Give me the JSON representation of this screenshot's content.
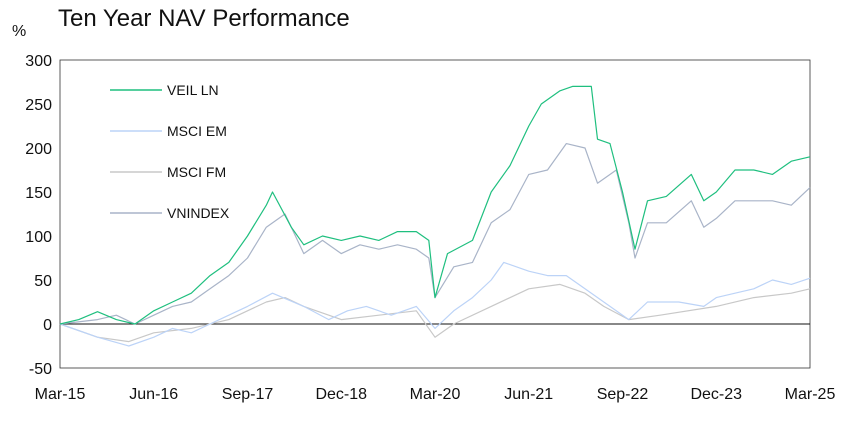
{
  "chart_data": {
    "type": "line",
    "title": "Ten Year NAV Performance",
    "ylabel": "%",
    "xlabel": "",
    "ylim": [
      -50,
      300
    ],
    "yticks": [
      -50,
      0,
      50,
      100,
      150,
      200,
      250,
      300
    ],
    "xlim": [
      "2015-03",
      "2025-03"
    ],
    "xticks": [
      {
        "date": "2015-03",
        "label": "Mar-15"
      },
      {
        "date": "2016-06",
        "label": "Jun-16"
      },
      {
        "date": "2017-09",
        "label": "Sep-17"
      },
      {
        "date": "2018-12",
        "label": "Dec-18"
      },
      {
        "date": "2020-03",
        "label": "Mar-20"
      },
      {
        "date": "2021-06",
        "label": "Jun-21"
      },
      {
        "date": "2022-09",
        "label": "Sep-22"
      },
      {
        "date": "2023-12",
        "label": "Dec-23"
      },
      {
        "date": "2025-03",
        "label": "Mar-25"
      }
    ],
    "grid": false,
    "zero_line": true,
    "legend_position": "top-left",
    "series": [
      {
        "name": "VEIL LN",
        "color": "#1fbf7f",
        "points": [
          [
            "2015-03",
            0
          ],
          [
            "2015-06",
            5
          ],
          [
            "2015-09",
            14
          ],
          [
            "2015-12",
            5
          ],
          [
            "2016-03",
            0
          ],
          [
            "2016-06",
            15
          ],
          [
            "2016-09",
            25
          ],
          [
            "2016-12",
            35
          ],
          [
            "2017-03",
            55
          ],
          [
            "2017-06",
            70
          ],
          [
            "2017-09",
            100
          ],
          [
            "2017-12",
            135
          ],
          [
            "2018-01",
            150
          ],
          [
            "2018-04",
            110
          ],
          [
            "2018-06",
            90
          ],
          [
            "2018-09",
            100
          ],
          [
            "2018-12",
            95
          ],
          [
            "2019-03",
            100
          ],
          [
            "2019-06",
            95
          ],
          [
            "2019-09",
            105
          ],
          [
            "2019-12",
            105
          ],
          [
            "2020-02",
            95
          ],
          [
            "2020-03",
            30
          ],
          [
            "2020-05",
            80
          ],
          [
            "2020-09",
            95
          ],
          [
            "2020-12",
            150
          ],
          [
            "2021-03",
            180
          ],
          [
            "2021-06",
            225
          ],
          [
            "2021-08",
            250
          ],
          [
            "2021-11",
            265
          ],
          [
            "2022-01",
            270
          ],
          [
            "2022-04",
            270
          ],
          [
            "2022-05",
            210
          ],
          [
            "2022-07",
            205
          ],
          [
            "2022-09",
            150
          ],
          [
            "2022-11",
            85
          ],
          [
            "2023-01",
            140
          ],
          [
            "2023-04",
            145
          ],
          [
            "2023-08",
            170
          ],
          [
            "2023-10",
            140
          ],
          [
            "2023-12",
            150
          ],
          [
            "2024-03",
            175
          ],
          [
            "2024-06",
            175
          ],
          [
            "2024-09",
            170
          ],
          [
            "2024-12",
            185
          ],
          [
            "2025-03",
            190
          ]
        ]
      },
      {
        "name": "MSCI EM",
        "color": "#bcd3f7",
        "points": [
          [
            "2015-03",
            0
          ],
          [
            "2015-09",
            -15
          ],
          [
            "2016-02",
            -25
          ],
          [
            "2016-06",
            -15
          ],
          [
            "2016-09",
            -5
          ],
          [
            "2016-12",
            -10
          ],
          [
            "2017-03",
            0
          ],
          [
            "2017-06",
            10
          ],
          [
            "2017-09",
            20
          ],
          [
            "2018-01",
            35
          ],
          [
            "2018-06",
            20
          ],
          [
            "2018-10",
            5
          ],
          [
            "2019-01",
            15
          ],
          [
            "2019-04",
            20
          ],
          [
            "2019-08",
            10
          ],
          [
            "2019-12",
            20
          ],
          [
            "2020-03",
            -5
          ],
          [
            "2020-06",
            15
          ],
          [
            "2020-09",
            30
          ],
          [
            "2020-12",
            50
          ],
          [
            "2021-02",
            70
          ],
          [
            "2021-06",
            60
          ],
          [
            "2021-09",
            55
          ],
          [
            "2021-12",
            55
          ],
          [
            "2022-03",
            40
          ],
          [
            "2022-06",
            25
          ],
          [
            "2022-10",
            5
          ],
          [
            "2023-01",
            25
          ],
          [
            "2023-06",
            25
          ],
          [
            "2023-10",
            20
          ],
          [
            "2023-12",
            30
          ],
          [
            "2024-03",
            35
          ],
          [
            "2024-06",
            40
          ],
          [
            "2024-09",
            50
          ],
          [
            "2024-12",
            45
          ],
          [
            "2025-03",
            52
          ]
        ]
      },
      {
        "name": "MSCI FM",
        "color": "#c8c8c8",
        "points": [
          [
            "2015-03",
            0
          ],
          [
            "2015-09",
            -15
          ],
          [
            "2016-02",
            -20
          ],
          [
            "2016-06",
            -10
          ],
          [
            "2016-12",
            -5
          ],
          [
            "2017-06",
            5
          ],
          [
            "2017-12",
            25
          ],
          [
            "2018-03",
            30
          ],
          [
            "2018-06",
            20
          ],
          [
            "2018-12",
            5
          ],
          [
            "2019-06",
            10
          ],
          [
            "2019-12",
            15
          ],
          [
            "2020-03",
            -15
          ],
          [
            "2020-06",
            0
          ],
          [
            "2020-12",
            20
          ],
          [
            "2021-06",
            40
          ],
          [
            "2021-11",
            45
          ],
          [
            "2022-03",
            35
          ],
          [
            "2022-06",
            20
          ],
          [
            "2022-10",
            5
          ],
          [
            "2023-03",
            10
          ],
          [
            "2023-12",
            20
          ],
          [
            "2024-06",
            30
          ],
          [
            "2024-12",
            35
          ],
          [
            "2025-03",
            40
          ]
        ]
      },
      {
        "name": "VNINDEX",
        "color": "#a9b4c8",
        "points": [
          [
            "2015-03",
            0
          ],
          [
            "2015-09",
            5
          ],
          [
            "2015-12",
            10
          ],
          [
            "2016-03",
            0
          ],
          [
            "2016-06",
            10
          ],
          [
            "2016-09",
            20
          ],
          [
            "2016-12",
            25
          ],
          [
            "2017-03",
            40
          ],
          [
            "2017-06",
            55
          ],
          [
            "2017-09",
            75
          ],
          [
            "2017-12",
            110
          ],
          [
            "2018-03",
            125
          ],
          [
            "2018-06",
            80
          ],
          [
            "2018-09",
            95
          ],
          [
            "2018-12",
            80
          ],
          [
            "2019-03",
            90
          ],
          [
            "2019-06",
            85
          ],
          [
            "2019-09",
            90
          ],
          [
            "2019-12",
            85
          ],
          [
            "2020-02",
            75
          ],
          [
            "2020-03",
            30
          ],
          [
            "2020-06",
            65
          ],
          [
            "2020-09",
            70
          ],
          [
            "2020-12",
            115
          ],
          [
            "2021-03",
            130
          ],
          [
            "2021-06",
            170
          ],
          [
            "2021-09",
            175
          ],
          [
            "2021-12",
            205
          ],
          [
            "2022-03",
            200
          ],
          [
            "2022-05",
            160
          ],
          [
            "2022-08",
            175
          ],
          [
            "2022-10",
            115
          ],
          [
            "2022-11",
            75
          ],
          [
            "2023-01",
            115
          ],
          [
            "2023-04",
            115
          ],
          [
            "2023-08",
            140
          ],
          [
            "2023-10",
            110
          ],
          [
            "2023-12",
            120
          ],
          [
            "2024-03",
            140
          ],
          [
            "2024-06",
            140
          ],
          [
            "2024-09",
            140
          ],
          [
            "2024-12",
            135
          ],
          [
            "2025-03",
            155
          ]
        ]
      }
    ]
  }
}
